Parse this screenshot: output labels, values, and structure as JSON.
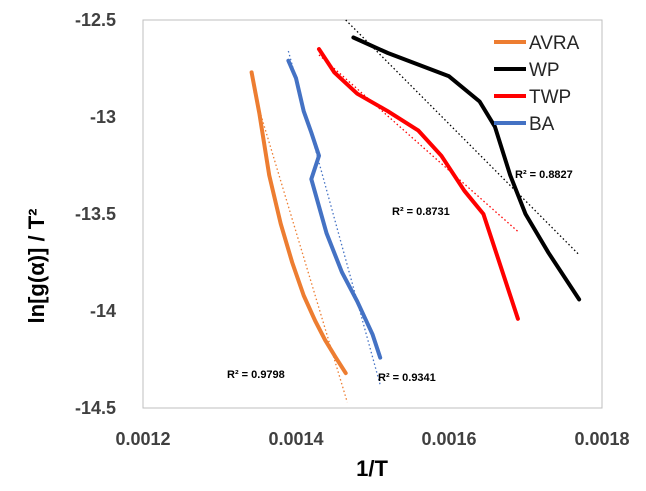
{
  "chart_data": {
    "type": "line",
    "title": "",
    "xlabel": "1/T",
    "ylabel": "ln[g(α)] / T²",
    "xlim": [
      0.0012,
      0.0018
    ],
    "ylim": [
      -14.5,
      -12.5
    ],
    "x_ticks": [
      "0.0012",
      "0.0014",
      "0.0016",
      "0.0018"
    ],
    "y_ticks": [
      "-12.5",
      "-13",
      "-13.5",
      "-14",
      "-14.5"
    ],
    "x_tick_values": [
      0.0012,
      0.0014,
      0.0016,
      0.0018
    ],
    "y_tick_values": [
      -12.5,
      -13,
      -13.5,
      -14,
      -14.5
    ],
    "legend_position": "top-right",
    "series": [
      {
        "name": "AVRA",
        "color": "#ED7D31",
        "r2": "R² = 0.9798",
        "x": [
          0.001342,
          0.001352,
          0.001365,
          0.00138,
          0.001395,
          0.00141,
          0.001425,
          0.001438,
          0.001452,
          0.001465
        ],
        "y": [
          -12.77,
          -12.98,
          -13.3,
          -13.55,
          -13.75,
          -13.92,
          -14.05,
          -14.15,
          -14.24,
          -14.32
        ],
        "trend": {
          "x": [
            0.001345,
            0.001467
          ],
          "y": [
            -12.87,
            -14.47
          ]
        }
      },
      {
        "name": "WP",
        "color": "#000000",
        "r2": "R² = 0.8827",
        "x": [
          0.001475,
          0.00152,
          0.00156,
          0.0016,
          0.00164,
          0.00166,
          0.00168,
          0.0017,
          0.00173,
          0.00177
        ],
        "y": [
          -12.59,
          -12.67,
          -12.73,
          -12.79,
          -12.92,
          -13.05,
          -13.3,
          -13.5,
          -13.7,
          -13.94
        ],
        "trend": {
          "x": [
            0.001465,
            0.00177
          ],
          "y": [
            -12.5,
            -13.71
          ]
        }
      },
      {
        "name": "TWP",
        "color": "#FF0000",
        "r2": "R² = 0.8731",
        "x": [
          0.00143,
          0.00145,
          0.00148,
          0.00152,
          0.00156,
          0.00159,
          0.00162,
          0.001645,
          0.00167,
          0.00169
        ],
        "y": [
          -12.65,
          -12.77,
          -12.88,
          -12.97,
          -13.07,
          -13.2,
          -13.38,
          -13.5,
          -13.8,
          -14.04
        ],
        "trend": {
          "x": [
            0.00143,
            0.00169
          ],
          "y": [
            -12.68,
            -13.59
          ]
        }
      },
      {
        "name": "BA",
        "color": "#4472C4",
        "r2": "R² = 0.9341",
        "x": [
          0.00139,
          0.0014,
          0.00141,
          0.00142,
          0.00143,
          0.00142,
          0.00144,
          0.00146,
          0.00148,
          0.0015,
          0.00151
        ],
        "y": [
          -12.71,
          -12.8,
          -12.97,
          -13.08,
          -13.2,
          -13.32,
          -13.6,
          -13.8,
          -13.95,
          -14.12,
          -14.24
        ],
        "trend": {
          "x": [
            0.00139,
            0.00151
          ],
          "y": [
            -12.66,
            -14.38
          ]
        }
      }
    ]
  }
}
